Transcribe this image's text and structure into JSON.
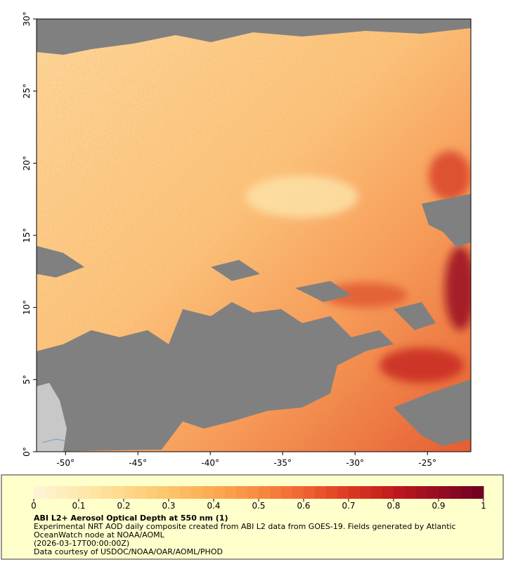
{
  "map": {
    "lonlim": [
      -52,
      -22
    ],
    "latlim": [
      0,
      30
    ],
    "xticks": [
      {
        "value": -50,
        "label": "-50°"
      },
      {
        "value": -45,
        "label": "-45°"
      },
      {
        "value": -40,
        "label": "-40°"
      },
      {
        "value": -35,
        "label": "-35°"
      },
      {
        "value": -30,
        "label": "-30°"
      },
      {
        "value": -25,
        "label": "-25°"
      }
    ],
    "yticks": [
      {
        "value": 0,
        "label": "0°"
      },
      {
        "value": 5,
        "label": "5°"
      },
      {
        "value": 10,
        "label": "10°"
      },
      {
        "value": 15,
        "label": "15°"
      },
      {
        "value": 20,
        "label": "20°"
      },
      {
        "value": 25,
        "label": "25°"
      },
      {
        "value": 30,
        "label": "30°"
      }
    ]
  },
  "colorbar": {
    "lim": [
      0,
      1
    ],
    "ticks": [
      0,
      0.1,
      0.2,
      0.3,
      0.4,
      0.5,
      0.6,
      0.7,
      0.8,
      0.9,
      1
    ],
    "colors": [
      "#fff6d6",
      "#fee9ae",
      "#fed98a",
      "#fdc46a",
      "#fcaa52",
      "#f98a40",
      "#f06432",
      "#dd3a22",
      "#c01a1c",
      "#960c22",
      "#6e0020"
    ]
  },
  "caption": {
    "title": "ABI L2+ Aerosol Optical Depth at 550 nm (1)",
    "description": "Experimental NRT AOD daily composite created from ABI L2 data from GOES-19. Fields generated by Atlantic OceanWatch node at NOAA/AOML",
    "timestamp": "(2026-03-17T00:00:00Z)",
    "credit": "Data courtesy of USDOC/NOAA/OAR/AOML/PHOD"
  }
}
